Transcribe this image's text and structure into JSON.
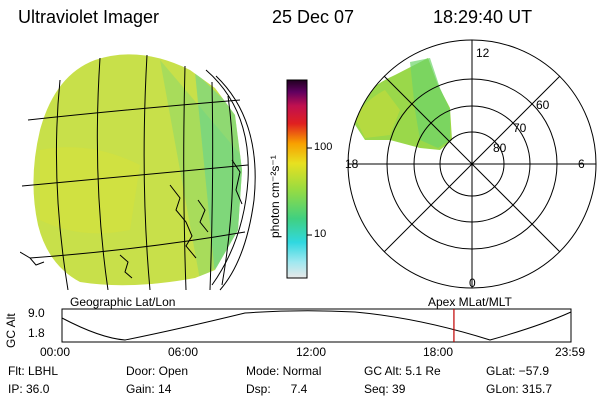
{
  "header": {
    "instrument": "Ultraviolet Imager",
    "date": "25 Dec 07",
    "time": "18:29:40 UT"
  },
  "colorbar": {
    "label": "photon cm⁻²s⁻¹",
    "ticks": [
      "100",
      "10"
    ]
  },
  "polar": {
    "mlt_labels": {
      "top": "12",
      "right": "6",
      "bottom": "0",
      "left": "18"
    },
    "lat_labels": [
      "60",
      "70",
      "80"
    ]
  },
  "panels": {
    "left_caption": "Geographic Lat/Lon",
    "right_caption": "Apex  MLat/MLT"
  },
  "altplot": {
    "ylabel": "GC Alt",
    "ymax": "9.0",
    "ymin": "1.8",
    "xticks": [
      "00:00",
      "06:00",
      "12:00",
      "18:00",
      "23:59"
    ],
    "marker_fraction": 0.77
  },
  "info": {
    "filter": "Flt: LBHL",
    "ip": "IP: 36.0",
    "door": "Door: Open",
    "gain": "Gain: 14",
    "mode": "Mode: Normal",
    "dsp": "Dsp:      7.4",
    "gc_alt": "GC Alt: 5.1 Re",
    "seq": "Seq: 39",
    "glat": "GLat: −57.9",
    "glon": "GLon: 315.7"
  },
  "colors": {
    "earth_fill": "#c8e04a",
    "marker": "#c00000"
  }
}
